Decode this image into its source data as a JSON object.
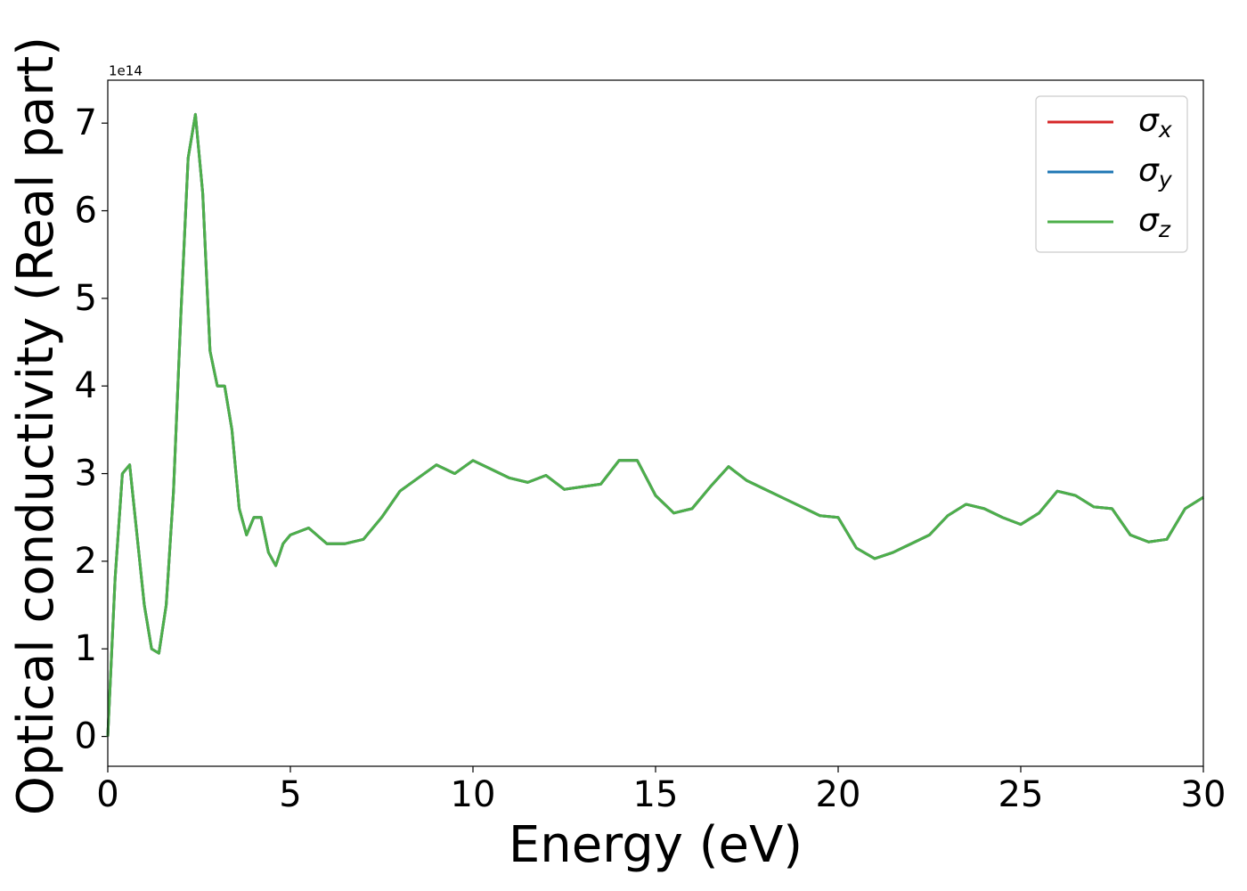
{
  "chart_data": {
    "type": "line",
    "xlabel": "Energy (eV)",
    "ylabel": "Optical conductivity (Real part)",
    "y_offset_text": "1e14",
    "x": [
      0,
      0.2,
      0.4,
      0.6,
      0.8,
      1.0,
      1.2,
      1.4,
      1.6,
      1.8,
      2.0,
      2.2,
      2.4,
      2.6,
      2.8,
      3.0,
      3.2,
      3.4,
      3.6,
      3.8,
      4.0,
      4.2,
      4.4,
      4.6,
      4.8,
      5.0,
      5.5,
      6.0,
      6.5,
      7.0,
      7.5,
      8.0,
      8.5,
      9.0,
      9.5,
      10.0,
      10.5,
      11.0,
      11.5,
      12.0,
      12.5,
      13.0,
      13.5,
      14.0,
      14.5,
      15.0,
      15.5,
      16.0,
      16.5,
      17.0,
      17.5,
      18.0,
      18.5,
      19.0,
      19.5,
      20.0,
      20.5,
      21.0,
      21.5,
      22.0,
      22.5,
      23.0,
      23.5,
      24.0,
      24.5,
      25.0,
      25.5,
      26.0,
      26.5,
      27.0,
      27.5,
      28.0,
      28.5,
      29.0,
      29.5,
      30.0
    ],
    "series": [
      {
        "name": "σx",
        "color": "#d62728",
        "values": [
          0,
          1.8,
          3.0,
          3.1,
          2.3,
          1.5,
          1.0,
          0.95,
          1.5,
          2.8,
          4.8,
          6.6,
          7.1,
          6.2,
          4.4,
          4.0,
          4.0,
          3.5,
          2.6,
          2.3,
          2.5,
          2.5,
          2.1,
          1.95,
          2.2,
          2.3,
          2.38,
          2.2,
          2.2,
          2.25,
          2.5,
          2.8,
          2.95,
          3.1,
          3.0,
          3.15,
          3.05,
          2.95,
          2.9,
          2.98,
          2.82,
          2.85,
          2.88,
          3.15,
          3.15,
          2.75,
          2.55,
          2.6,
          2.85,
          3.08,
          2.92,
          2.82,
          2.72,
          2.62,
          2.52,
          2.5,
          2.15,
          2.03,
          2.1,
          2.2,
          2.3,
          2.52,
          2.65,
          2.6,
          2.5,
          2.42,
          2.55,
          2.8,
          2.75,
          2.62,
          2.6,
          2.3,
          2.22,
          2.25,
          2.6,
          2.73
        ]
      },
      {
        "name": "σy",
        "color": "#1f77b4",
        "values": [
          0,
          1.8,
          3.0,
          3.1,
          2.3,
          1.5,
          1.0,
          0.95,
          1.5,
          2.8,
          4.8,
          6.6,
          7.1,
          6.2,
          4.4,
          4.0,
          4.0,
          3.5,
          2.6,
          2.3,
          2.5,
          2.5,
          2.1,
          1.95,
          2.2,
          2.3,
          2.38,
          2.2,
          2.2,
          2.25,
          2.5,
          2.8,
          2.95,
          3.1,
          3.0,
          3.15,
          3.05,
          2.95,
          2.9,
          2.98,
          2.82,
          2.85,
          2.88,
          3.15,
          3.15,
          2.75,
          2.55,
          2.6,
          2.85,
          3.08,
          2.92,
          2.82,
          2.72,
          2.62,
          2.52,
          2.5,
          2.15,
          2.03,
          2.1,
          2.2,
          2.3,
          2.52,
          2.65,
          2.6,
          2.5,
          2.42,
          2.55,
          2.8,
          2.75,
          2.62,
          2.6,
          2.3,
          2.22,
          2.25,
          2.6,
          2.73
        ]
      },
      {
        "name": "σz",
        "color": "#4daf4a",
        "values": [
          0,
          1.8,
          3.0,
          3.1,
          2.3,
          1.5,
          1.0,
          0.95,
          1.5,
          2.8,
          4.8,
          6.6,
          7.1,
          6.2,
          4.4,
          4.0,
          4.0,
          3.5,
          2.6,
          2.3,
          2.5,
          2.5,
          2.1,
          1.95,
          2.2,
          2.3,
          2.38,
          2.2,
          2.2,
          2.25,
          2.5,
          2.8,
          2.95,
          3.1,
          3.0,
          3.15,
          3.05,
          2.95,
          2.9,
          2.98,
          2.82,
          2.85,
          2.88,
          3.15,
          3.15,
          2.75,
          2.55,
          2.6,
          2.85,
          3.08,
          2.92,
          2.82,
          2.72,
          2.62,
          2.52,
          2.5,
          2.15,
          2.03,
          2.1,
          2.2,
          2.3,
          2.52,
          2.65,
          2.6,
          2.5,
          2.42,
          2.55,
          2.8,
          2.75,
          2.62,
          2.6,
          2.3,
          2.22,
          2.25,
          2.6,
          2.73
        ]
      }
    ],
    "xlim": [
      0,
      30
    ],
    "xticks": [
      0,
      5,
      10,
      15,
      20,
      25,
      30
    ],
    "ylim": [
      -0.34,
      7.49
    ],
    "yticks": [
      0,
      1,
      2,
      3,
      4,
      5,
      6,
      7
    ],
    "grid": false,
    "legend": "upper right"
  }
}
